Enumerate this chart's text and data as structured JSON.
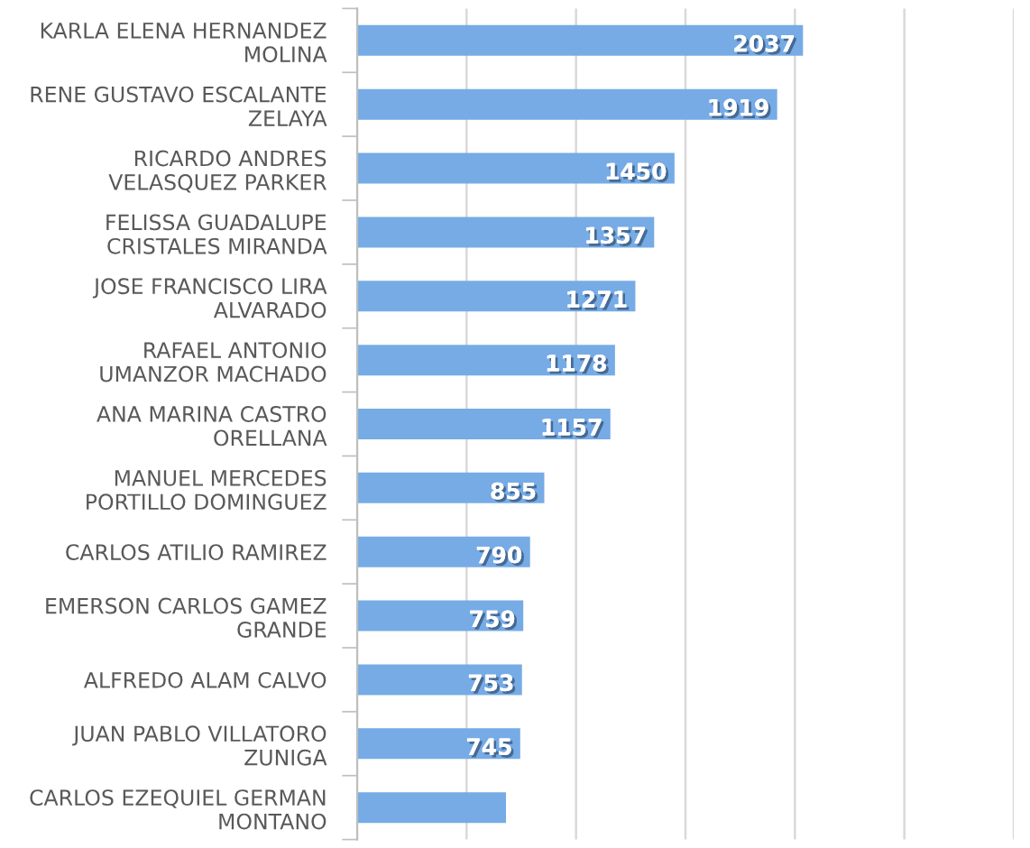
{
  "chart_data": {
    "type": "bar",
    "orientation": "horizontal",
    "categories": [
      "KARLA ELENA HERNANDEZ MOLINA",
      "RENE GUSTAVO ESCALANTE ZELAYA",
      "RICARDO ANDRES VELASQUEZ PARKER",
      "FELISSA GUADALUPE CRISTALES MIRANDA",
      "JOSE FRANCISCO LIRA ALVARADO",
      "RAFAEL ANTONIO UMANZOR MACHADO",
      "ANA MARINA CASTRO ORELLANA",
      "MANUEL MERCEDES PORTILLO DOMINGUEZ",
      "CARLOS ATILIO RAMIREZ",
      "EMERSON CARLOS GAMEZ GRANDE",
      "ALFREDO ALAM CALVO",
      "JUAN PABLO VILLATORO ZUNIGA",
      "CARLOS EZEQUIEL GERMAN MONTANO"
    ],
    "values": [
      2037,
      1919,
      1450,
      1357,
      1271,
      1178,
      1157,
      855,
      790,
      759,
      753,
      745,
      680
    ],
    "value_labels": [
      "2037",
      "1919",
      "1450",
      "1357",
      "1271",
      "1178",
      "1157",
      "855",
      "790",
      "759",
      "753",
      "745",
      null
    ],
    "color": "#76abe6",
    "xlim": [
      0,
      3000
    ],
    "xticks": [
      {
        "value": 0,
        "label": null
      },
      {
        "value": 500,
        "label": null
      },
      {
        "value": 1000,
        "label": null
      },
      {
        "value": 1500,
        "label": null
      },
      {
        "value": 2000,
        "label": null
      },
      {
        "value": 2500,
        "label": null
      },
      {
        "value": 3000,
        "label": null
      }
    ],
    "grid": "x",
    "tick_labels": "y"
  }
}
